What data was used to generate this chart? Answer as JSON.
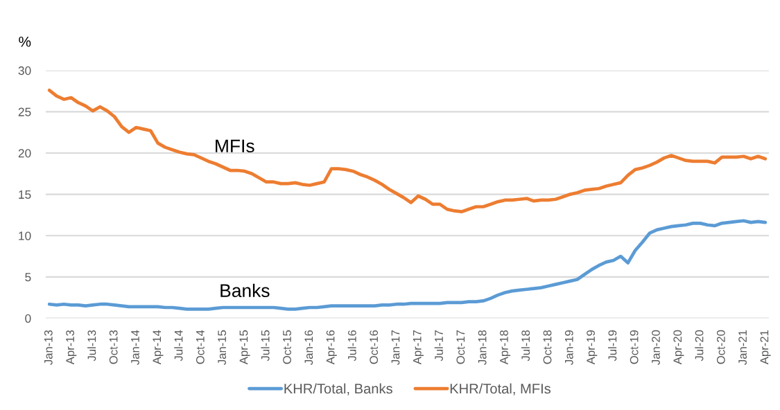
{
  "chart_data": {
    "type": "line",
    "ylabel": "%",
    "categories": [
      "Jan-13",
      null,
      null,
      "Apr-13",
      null,
      null,
      "Jul-13",
      null,
      null,
      "Oct-13",
      null,
      null,
      "Jan-14",
      null,
      null,
      "Apr-14",
      null,
      null,
      "Jul-14",
      null,
      null,
      "Oct-14",
      null,
      null,
      "Jan-15",
      null,
      null,
      "Apr-15",
      null,
      null,
      "Jul-15",
      null,
      null,
      "Oct-15",
      null,
      null,
      "Jan-16",
      null,
      null,
      "Apr-16",
      null,
      null,
      "Jul-16",
      null,
      null,
      "Oct-16",
      null,
      null,
      "Jan-17",
      null,
      null,
      "Apr-17",
      null,
      null,
      "Jul-17",
      null,
      null,
      "Oct-17",
      null,
      null,
      "Jan-18",
      null,
      null,
      "Apr-18",
      null,
      null,
      "Jul-18",
      null,
      null,
      "Oct-18",
      null,
      null,
      "Jan-19",
      null,
      null,
      "Apr-19",
      null,
      null,
      "Jul-19",
      null,
      null,
      "Oct-19",
      null,
      null,
      "Jan-20",
      null,
      null,
      "Apr-20",
      null,
      null,
      "Jul-20",
      null,
      null,
      "Oct-20",
      null,
      null,
      "Jan-21",
      null,
      null,
      "Apr-21"
    ],
    "series": [
      {
        "name": "KHR/Total, Banks",
        "color": "#5b9bd5",
        "values": [
          1.7,
          1.6,
          1.7,
          1.6,
          1.6,
          1.5,
          1.6,
          1.7,
          1.7,
          1.6,
          1.5,
          1.4,
          1.4,
          1.4,
          1.4,
          1.4,
          1.3,
          1.3,
          1.2,
          1.1,
          1.1,
          1.1,
          1.1,
          1.2,
          1.3,
          1.3,
          1.3,
          1.3,
          1.3,
          1.3,
          1.3,
          1.3,
          1.2,
          1.1,
          1.1,
          1.2,
          1.3,
          1.3,
          1.4,
          1.5,
          1.5,
          1.5,
          1.5,
          1.5,
          1.5,
          1.5,
          1.6,
          1.6,
          1.7,
          1.7,
          1.8,
          1.8,
          1.8,
          1.8,
          1.8,
          1.9,
          1.9,
          1.9,
          2.0,
          2.0,
          2.1,
          2.4,
          2.8,
          3.1,
          3.3,
          3.4,
          3.5,
          3.6,
          3.7,
          3.9,
          4.1,
          4.3,
          4.5,
          4.7,
          5.3,
          5.9,
          6.4,
          6.8,
          7.0,
          7.5,
          6.7,
          8.2,
          9.2,
          10.3,
          10.7,
          10.9,
          11.1,
          11.2,
          11.3,
          11.5,
          11.5,
          11.3,
          11.2,
          11.5,
          11.6,
          11.7,
          11.8,
          11.6,
          11.7,
          11.6
        ]
      },
      {
        "name": "KHR/Total, MFIs",
        "color": "#ed7d31",
        "values": [
          27.6,
          26.9,
          26.5,
          26.7,
          26.1,
          25.7,
          25.1,
          25.6,
          25.1,
          24.4,
          23.2,
          22.5,
          23.1,
          22.9,
          22.7,
          21.2,
          20.7,
          20.4,
          20.1,
          19.9,
          19.8,
          19.4,
          19.0,
          18.7,
          18.3,
          17.9,
          17.9,
          17.8,
          17.5,
          17.0,
          16.5,
          16.5,
          16.3,
          16.3,
          16.4,
          16.2,
          16.1,
          16.3,
          16.5,
          18.1,
          18.1,
          18.0,
          17.8,
          17.4,
          17.1,
          16.7,
          16.2,
          15.6,
          15.1,
          14.6,
          14.0,
          14.8,
          14.4,
          13.8,
          13.8,
          13.2,
          13.0,
          12.9,
          13.2,
          13.5,
          13.5,
          13.8,
          14.1,
          14.3,
          14.3,
          14.4,
          14.5,
          14.2,
          14.3,
          14.3,
          14.4,
          14.7,
          15.0,
          15.2,
          15.5,
          15.6,
          15.7,
          16.0,
          16.2,
          16.4,
          17.3,
          18.0,
          18.2,
          18.5,
          18.9,
          19.4,
          19.7,
          19.4,
          19.1,
          19.0,
          19.0,
          19.0,
          18.8,
          19.5,
          19.5,
          19.5,
          19.6,
          19.3,
          19.6,
          19.3
        ]
      }
    ],
    "ylim": [
      0,
      30
    ],
    "yticks": [
      0,
      5,
      10,
      15,
      20,
      25,
      30
    ],
    "grid": "y",
    "legend": "bottom",
    "line_style": "solid",
    "annotations": [
      "MFIs",
      "Banks"
    ]
  }
}
